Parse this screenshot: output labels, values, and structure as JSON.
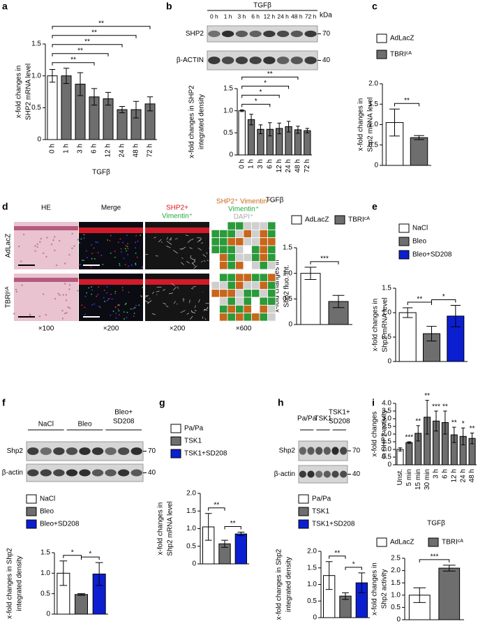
{
  "panel_labels": [
    "a",
    "b",
    "c",
    "d",
    "e",
    "f",
    "g",
    "h",
    "i"
  ],
  "blots": [
    {
      "header": "TGFβ",
      "lanes": [
        "0 h",
        "1 h",
        "3 h",
        "6 h",
        "12 h",
        "24 h",
        "48 h",
        "72 h"
      ],
      "rows": [
        "SHP2",
        "β-ACTIN"
      ],
      "unit": "kDa",
      "markers": [
        70,
        40
      ]
    },
    {
      "groups": [
        [
          "NaCl"
        ],
        [
          "Bleo"
        ],
        [
          "Bleo+",
          "SD208"
        ]
      ],
      "rows": [
        "Shp2",
        "β-actin"
      ],
      "markers": [
        70,
        40
      ]
    },
    {
      "groups": [
        [
          "Pa/Pa"
        ],
        [
          "TSK1"
        ],
        [
          "TSK1+",
          "SD208"
        ]
      ],
      "rows": [
        "Shp2",
        "β-actin"
      ],
      "markers": [
        70,
        40
      ]
    }
  ],
  "images": {
    "columns": [
      "HE",
      "Merge"
    ],
    "channel_labels": [
      "SHP2+",
      "Vimentin⁺"
    ],
    "segmentation_legend": [
      "SHP2⁺ Vimentin⁺",
      "Vimentin⁺",
      "DAPI⁺"
    ],
    "rows": [
      "AdLacZ",
      "TBRIᶜᴬ"
    ],
    "magnifications": [
      "×100",
      "×200",
      "×200",
      "×600"
    ]
  },
  "chart_data": [
    {
      "type": "bar",
      "categories": [
        "0 h",
        "1 h",
        "3 h",
        "6 h",
        "12 h",
        "24 h",
        "48 h",
        "72 h"
      ],
      "values": [
        1.0,
        1.0,
        0.87,
        0.67,
        0.64,
        0.47,
        0.47,
        0.56
      ],
      "errors": [
        0.1,
        0.12,
        0.18,
        0.13,
        0.1,
        0.05,
        0.13,
        0.11
      ],
      "colors": [
        "#ffffff",
        "#6e6e6e",
        "#6e6e6e",
        "#6e6e6e",
        "#6e6e6e",
        "#6e6e6e",
        "#6e6e6e",
        "#6e6e6e"
      ],
      "ylabel": [
        "x-fold changes in",
        "SHP2 mRNA level"
      ],
      "xlabel": "TGFβ",
      "ylim": [
        0,
        1.5
      ],
      "yticks": [
        0,
        0.5,
        {
          "value": 1,
          "label": "1.0"
        },
        1.5
      ],
      "brackets": [
        {
          "between": [
            "0 h",
            "72 h"
          ],
          "label": "**"
        },
        {
          "between": [
            "0 h",
            "48 h"
          ],
          "label": "**"
        },
        {
          "between": [
            "0 h",
            "24 h"
          ],
          "label": "**"
        },
        {
          "between": [
            "0 h",
            "12 h"
          ],
          "label": "**"
        },
        {
          "between": [
            "0 h",
            "6 h"
          ],
          "label": "**"
        }
      ]
    },
    {
      "type": "bar",
      "categories": [
        "0 h",
        "1 h",
        "3 h",
        "6 h",
        "12 h",
        "24 h",
        "48 h",
        "72 h"
      ],
      "values": [
        1.0,
        0.8,
        0.58,
        0.58,
        0.6,
        0.64,
        0.57,
        0.55
      ],
      "errors": [
        0.02,
        0.12,
        0.1,
        0.15,
        0.12,
        0.12,
        0.08,
        0.05
      ],
      "colors": [
        "#ffffff",
        "#6e6e6e",
        "#6e6e6e",
        "#6e6e6e",
        "#6e6e6e",
        "#6e6e6e",
        "#6e6e6e",
        "#6e6e6e"
      ],
      "ylabel": [
        "x-fold changes in SHP2",
        "integrated density"
      ],
      "xlabel": "TGFβ",
      "ylim": [
        0,
        1.5
      ],
      "yticks": [
        0,
        0.5,
        {
          "value": 1,
          "label": "1.0"
        },
        1.5
      ],
      "brackets": [
        {
          "between": [
            "0 h",
            "48 h"
          ],
          "label": "**"
        },
        {
          "between": [
            "0 h",
            "24 h"
          ],
          "label": "*"
        },
        {
          "between": [
            "0 h",
            "12 h"
          ],
          "label": "*"
        },
        {
          "between": [
            "0 h",
            "6 h"
          ],
          "label": "*"
        }
      ]
    },
    {
      "type": "bar",
      "series": [
        {
          "name": "AdLacZ",
          "color": "#ffffff",
          "values": [
            1.05
          ],
          "errors": [
            0.33
          ]
        },
        {
          "name": "TBRIᶜᴬ",
          "color": "#6e6e6e",
          "values": [
            0.68
          ],
          "errors": [
            0.05
          ]
        }
      ],
      "ylabel": [
        "x-fold changes in",
        "Shp2 mRNA level"
      ],
      "legend": "top",
      "ylim": [
        0,
        2
      ],
      "yticks": [
        0,
        0.5,
        {
          "value": 1,
          "label": "1.0"
        },
        1.5,
        {
          "value": 2,
          "label": "2.0"
        }
      ],
      "brackets": [
        {
          "between": [
            "AdLacZ",
            "TBRIᶜᴬ"
          ],
          "label": "**"
        }
      ]
    },
    {
      "type": "bar",
      "series": [
        {
          "name": "AdLacZ",
          "color": "#ffffff",
          "values": [
            1.0
          ],
          "errors": [
            0.12
          ]
        },
        {
          "name": "TBRIᶜᴬ",
          "color": "#6e6e6e",
          "values": [
            0.45
          ],
          "errors": [
            0.12
          ]
        }
      ],
      "ylabel": [
        "x-fold changes in",
        "Shp2 fluo. int."
      ],
      "legend": "top",
      "ylim": [
        0,
        1.5
      ],
      "yticks": [
        0,
        0.5,
        {
          "value": 1,
          "label": "1.0"
        },
        1.5
      ],
      "brackets": [
        {
          "between": [
            "AdLacZ",
            "TBRIᶜᴬ"
          ],
          "label": "***"
        }
      ]
    },
    {
      "type": "bar",
      "series": [
        {
          "name": "NaCl",
          "color": "#ffffff",
          "values": [
            1.0
          ],
          "errors": [
            0.1
          ]
        },
        {
          "name": "Bleo",
          "color": "#6e6e6e",
          "values": [
            0.57
          ],
          "errors": [
            0.15
          ]
        },
        {
          "name": "Bleo+SD208",
          "color": "#0b1fd1",
          "values": [
            0.93
          ],
          "errors": [
            0.22
          ]
        }
      ],
      "ylabel": [
        "x-fold changes in",
        "Shp2 mRNA level"
      ],
      "legend": "top",
      "ylim": [
        0,
        1.5
      ],
      "yticks": [
        0,
        0.5,
        {
          "value": 1,
          "label": "1.0"
        },
        1.5
      ],
      "brackets": [
        {
          "between": [
            "NaCl",
            "Bleo"
          ],
          "label": "**"
        },
        {
          "between": [
            "Bleo",
            "Bleo+SD208"
          ],
          "label": "*"
        }
      ]
    },
    {
      "type": "bar",
      "series": [
        {
          "name": "NaCl",
          "color": "#ffffff",
          "values": [
            1.0
          ],
          "errors": [
            0.3
          ]
        },
        {
          "name": "Bleo",
          "color": "#6e6e6e",
          "values": [
            0.48
          ],
          "errors": [
            0.02
          ]
        },
        {
          "name": "Bleo+SD208",
          "color": "#0b1fd1",
          "values": [
            0.98
          ],
          "errors": [
            0.28
          ]
        }
      ],
      "ylabel": [
        "x-fold changes in Shp2",
        "integrated density"
      ],
      "legend": "top",
      "ylim": [
        0,
        1.5
      ],
      "yticks": [
        0,
        0.5,
        {
          "value": 1,
          "label": "1.0"
        },
        1.5
      ],
      "brackets": [
        {
          "between": [
            "NaCl",
            "Bleo"
          ],
          "label": "*"
        },
        {
          "between": [
            "Bleo",
            "Bleo+SD208"
          ],
          "label": "*"
        }
      ]
    },
    {
      "type": "bar",
      "series": [
        {
          "name": "Pa/Pa",
          "color": "#ffffff",
          "values": [
            1.05
          ],
          "errors": [
            0.38
          ]
        },
        {
          "name": "TSK1",
          "color": "#6e6e6e",
          "values": [
            0.57
          ],
          "errors": [
            0.1
          ]
        },
        {
          "name": "TSK1+SD208",
          "color": "#0b1fd1",
          "values": [
            0.85
          ],
          "errors": [
            0.05
          ]
        }
      ],
      "ylabel": [
        "x-fold changes in",
        "Shp2 mRNA level"
      ],
      "legend": "top",
      "ylim": [
        0,
        2
      ],
      "yticks": [
        0,
        0.5,
        {
          "value": 1,
          "label": "1.0"
        },
        1.5,
        {
          "value": 2,
          "label": "2.0"
        }
      ],
      "brackets": [
        {
          "between": [
            "Pa/Pa",
            "TSK1"
          ],
          "label": "**"
        },
        {
          "between": [
            "TSK1",
            "TSK1+SD208"
          ],
          "label": "**"
        }
      ]
    },
    {
      "type": "bar",
      "series": [
        {
          "name": "Pa/Pa",
          "color": "#ffffff",
          "values": [
            1.27
          ],
          "errors": [
            0.42
          ]
        },
        {
          "name": "TSK1",
          "color": "#6e6e6e",
          "values": [
            0.65
          ],
          "errors": [
            0.1
          ]
        },
        {
          "name": "TSK1+SD208",
          "color": "#0b1fd1",
          "values": [
            1.05
          ],
          "errors": [
            0.3
          ]
        }
      ],
      "ylabel": [
        "x-fold changes in Shp2",
        "integrated density"
      ],
      "legend": "top",
      "ylim": [
        0,
        2
      ],
      "yticks": [
        0,
        0.5,
        {
          "value": 1,
          "label": "1.0"
        },
        1.5,
        {
          "value": 2,
          "label": "2.0"
        }
      ],
      "brackets": [
        {
          "between": [
            "Pa/Pa",
            "TSK1"
          ],
          "label": "**"
        },
        {
          "between": [
            "TSK1",
            "TSK1+SD208"
          ],
          "label": "*"
        }
      ]
    },
    {
      "type": "bar",
      "categories": [
        "Unst.",
        "5 min",
        "15 min",
        "30 min",
        "3 h",
        "6 h",
        "12 h",
        "24 h",
        "48 h"
      ],
      "values": [
        1.0,
        1.45,
        2.05,
        3.1,
        2.85,
        2.75,
        1.95,
        1.85,
        1.72
      ],
      "errors": [
        0.1,
        0.05,
        0.5,
        1.1,
        0.65,
        0.75,
        0.5,
        0.55,
        0.35
      ],
      "colors": [
        "#ffffff",
        "#6e6e6e",
        "#6e6e6e",
        "#6e6e6e",
        "#6e6e6e",
        "#6e6e6e",
        "#6e6e6e",
        "#6e6e6e",
        "#6e6e6e"
      ],
      "ylabel": [
        "x-fold changes",
        "in SHP2 activity"
      ],
      "xlabel": "TGFβ",
      "ylim": [
        0,
        4
      ],
      "yticks": [
        0,
        0.5,
        {
          "value": 1,
          "label": "1.0"
        },
        1.5,
        {
          "value": 2,
          "label": "2.0"
        },
        2.5,
        {
          "value": 3,
          "label": "3.0"
        },
        3.5,
        {
          "value": 4,
          "label": "4.0"
        }
      ],
      "annotations": [
        {
          "at": "5 min",
          "label": "***"
        },
        {
          "at": "15 min",
          "label": "**"
        },
        {
          "at": "30 min",
          "label": "**"
        },
        {
          "at": "3 h",
          "label": "***"
        },
        {
          "at": "6 h",
          "label": "**"
        },
        {
          "at": "12 h",
          "label": "**"
        },
        {
          "at": "24 h",
          "label": "*"
        },
        {
          "at": "48 h",
          "label": "**"
        }
      ]
    },
    {
      "type": "bar",
      "series": [
        {
          "name": "AdLacZ",
          "color": "#ffffff",
          "values": [
            1.0
          ],
          "errors": [
            0.3
          ]
        },
        {
          "name": "TBRIᶜᴬ",
          "color": "#6e6e6e",
          "values": [
            2.1
          ],
          "errors": [
            0.12
          ]
        }
      ],
      "ylabel": [
        "x-fold changes in",
        "Shp2 activity"
      ],
      "legend": "top",
      "ylim": [
        0,
        2.5
      ],
      "yticks": [
        0,
        0.5,
        {
          "value": 1,
          "label": "1.0"
        },
        1.5,
        {
          "value": 2,
          "label": "2.0"
        },
        2.5
      ],
      "brackets": [
        {
          "between": [
            "AdLacZ",
            "TBRIᶜᴬ"
          ],
          "label": "***"
        }
      ]
    }
  ]
}
